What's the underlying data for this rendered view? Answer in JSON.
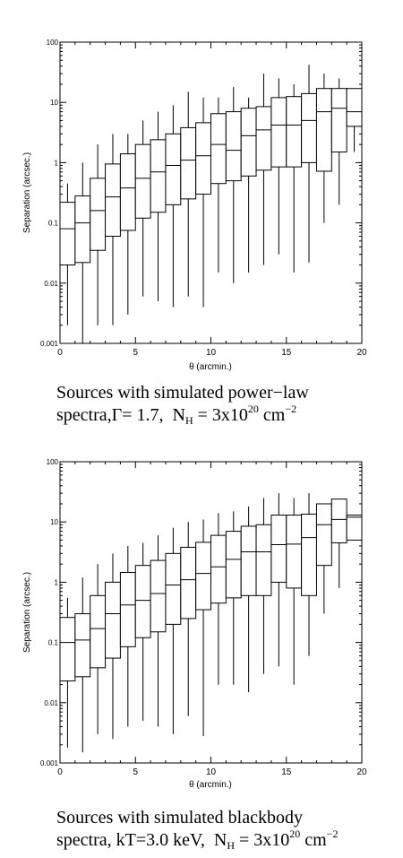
{
  "chart_data": [
    {
      "type": "boxplot",
      "xlabel": "θ (arcmin.)",
      "ylabel": "Separation (arcsec.)",
      "xlim": [
        0,
        20
      ],
      "ylim": [
        0.001,
        100
      ],
      "yscale": "log",
      "xticks": [
        "0",
        "5",
        "10",
        "15",
        "20"
      ],
      "yticks": [
        "0.001",
        "0.01",
        "0.1",
        "1",
        "10",
        "100"
      ],
      "grid": false,
      "bin_width": 1,
      "boxes": [
        {
          "x": 0.5,
          "whisker_low": 0.002,
          "q1": 0.02,
          "median": 0.08,
          "q3": 0.22,
          "whisker_high": 0.45
        },
        {
          "x": 1.5,
          "whisker_low": 0.001,
          "q1": 0.022,
          "median": 0.1,
          "q3": 0.28,
          "whisker_high": 1.0
        },
        {
          "x": 2.5,
          "whisker_low": 0.002,
          "q1": 0.035,
          "median": 0.16,
          "q3": 0.55,
          "whisker_high": 2.0
        },
        {
          "x": 3.5,
          "whisker_low": 0.002,
          "q1": 0.06,
          "median": 0.27,
          "q3": 0.95,
          "whisker_high": 3.0
        },
        {
          "x": 4.5,
          "whisker_low": 0.003,
          "q1": 0.075,
          "median": 0.38,
          "q3": 1.4,
          "whisker_high": 3.0
        },
        {
          "x": 5.5,
          "whisker_low": 0.006,
          "q1": 0.12,
          "median": 0.55,
          "q3": 2.0,
          "whisker_high": 5.0
        },
        {
          "x": 6.5,
          "whisker_low": 0.005,
          "q1": 0.15,
          "median": 0.7,
          "q3": 2.4,
          "whisker_high": 7.0
        },
        {
          "x": 7.5,
          "whisker_low": 0.004,
          "q1": 0.2,
          "median": 0.9,
          "q3": 3.0,
          "whisker_high": 9.0
        },
        {
          "x": 8.5,
          "whisker_low": 0.006,
          "q1": 0.25,
          "median": 1.1,
          "q3": 3.8,
          "whisker_high": 15.0
        },
        {
          "x": 9.5,
          "whisker_low": 0.004,
          "q1": 0.3,
          "median": 1.3,
          "q3": 4.6,
          "whisker_high": 12.0
        },
        {
          "x": 10.5,
          "whisker_low": 0.015,
          "q1": 0.45,
          "median": 2.0,
          "q3": 6.5,
          "whisker_high": 12.0
        },
        {
          "x": 11.5,
          "whisker_low": 0.01,
          "q1": 0.5,
          "median": 1.6,
          "q3": 7.0,
          "whisker_high": 18.0
        },
        {
          "x": 12.5,
          "whisker_low": 0.015,
          "q1": 0.6,
          "median": 2.8,
          "q3": 8.0,
          "whisker_high": 12.0
        },
        {
          "x": 13.5,
          "whisker_low": 0.02,
          "q1": 0.75,
          "median": 3.5,
          "q3": 8.5,
          "whisker_high": 30.0
        },
        {
          "x": 14.5,
          "whisker_low": 0.03,
          "q1": 0.85,
          "median": 4.2,
          "q3": 12.0,
          "whisker_high": 25.0
        },
        {
          "x": 15.5,
          "whisker_low": 0.015,
          "q1": 0.85,
          "median": 4.2,
          "q3": 12.5,
          "whisker_high": 20.0
        },
        {
          "x": 16.5,
          "whisker_low": 0.022,
          "q1": 1.0,
          "median": 5.0,
          "q3": 14.0,
          "whisker_high": 42.0
        },
        {
          "x": 17.5,
          "whisker_low": 0.1,
          "q1": 0.72,
          "median": 7.0,
          "q3": 17.0,
          "whisker_high": 30.0
        },
        {
          "x": 18.5,
          "whisker_low": 0.2,
          "q1": 1.5,
          "median": 8.0,
          "q3": 17.0,
          "whisker_high": 25.0
        },
        {
          "x": 19.5,
          "whisker_low": 1.5,
          "q1": 4.0,
          "median": 7.0,
          "q3": 17.0,
          "whisker_high": 17.0
        }
      ],
      "caption": {
        "line1": "Sources with simulated power−law",
        "line2_prefix": "spectra,",
        "gamma_symbol": "Γ",
        "gamma_value": "= 1.7,",
        "nh_symbol": "N",
        "nh_sub": "H",
        "nh_eq": "= 3x10",
        "nh_exp": "20",
        "nh_unit": "cm",
        "nh_unit_exp": "−2"
      }
    },
    {
      "type": "boxplot",
      "xlabel": "θ (arcmin.)",
      "ylabel": "Separation (arcsec.)",
      "xlim": [
        0,
        20
      ],
      "ylim": [
        0.001,
        100
      ],
      "yscale": "log",
      "xticks": [
        "0",
        "5",
        "10",
        "15",
        "20"
      ],
      "yticks": [
        "0.001",
        "0.01",
        "0.1",
        "1",
        "10",
        "100"
      ],
      "grid": false,
      "bin_width": 1,
      "boxes": [
        {
          "x": 0.5,
          "whisker_low": 0.0018,
          "q1": 0.023,
          "median": 0.1,
          "q3": 0.26,
          "whisker_high": 0.55
        },
        {
          "x": 1.5,
          "whisker_low": 0.0015,
          "q1": 0.027,
          "median": 0.11,
          "q3": 0.3,
          "whisker_high": 1.2
        },
        {
          "x": 2.5,
          "whisker_low": 0.003,
          "q1": 0.038,
          "median": 0.17,
          "q3": 0.6,
          "whisker_high": 2.0
        },
        {
          "x": 3.5,
          "whisker_low": 0.0025,
          "q1": 0.055,
          "median": 0.3,
          "q3": 1.0,
          "whisker_high": 3.0
        },
        {
          "x": 4.5,
          "whisker_low": 0.004,
          "q1": 0.085,
          "median": 0.42,
          "q3": 1.45,
          "whisker_high": 4.0
        },
        {
          "x": 5.5,
          "whisker_low": 0.005,
          "q1": 0.12,
          "median": 0.5,
          "q3": 1.9,
          "whisker_high": 4.5
        },
        {
          "x": 6.5,
          "whisker_low": 0.004,
          "q1": 0.15,
          "median": 0.65,
          "q3": 2.3,
          "whisker_high": 6.0
        },
        {
          "x": 7.5,
          "whisker_low": 0.003,
          "q1": 0.2,
          "median": 0.9,
          "q3": 3.0,
          "whisker_high": 8.0
        },
        {
          "x": 8.5,
          "whisker_low": 0.006,
          "q1": 0.25,
          "median": 1.1,
          "q3": 3.8,
          "whisker_high": 10.0
        },
        {
          "x": 9.5,
          "whisker_low": 0.0028,
          "q1": 0.35,
          "median": 1.4,
          "q3": 4.6,
          "whisker_high": 11.0
        },
        {
          "x": 10.5,
          "whisker_low": 0.02,
          "q1": 0.45,
          "median": 1.8,
          "q3": 6.0,
          "whisker_high": 14.0
        },
        {
          "x": 11.5,
          "whisker_low": 0.02,
          "q1": 0.55,
          "median": 2.4,
          "q3": 7.0,
          "whisker_high": 15.0
        },
        {
          "x": 12.5,
          "whisker_low": 0.015,
          "q1": 0.6,
          "median": 3.2,
          "q3": 8.5,
          "whisker_high": 18.0
        },
        {
          "x": 13.5,
          "whisker_low": 0.03,
          "q1": 0.6,
          "median": 3.2,
          "q3": 9.0,
          "whisker_high": 25.0
        },
        {
          "x": 14.5,
          "whisker_low": 0.04,
          "q1": 1.0,
          "median": 4.2,
          "q3": 13.0,
          "whisker_high": 30.0
        },
        {
          "x": 15.5,
          "whisker_low": 0.02,
          "q1": 0.8,
          "median": 4.3,
          "q3": 13.0,
          "whisker_high": 25.0
        },
        {
          "x": 16.5,
          "whisker_low": 0.06,
          "q1": 0.6,
          "median": 5.5,
          "q3": 13.5,
          "whisker_high": 30.0
        },
        {
          "x": 17.5,
          "whisker_low": 0.3,
          "q1": 1.9,
          "median": 9.0,
          "q3": 20.0,
          "whisker_high": 20.0
        },
        {
          "x": 18.5,
          "whisker_low": 0.8,
          "q1": 4.5,
          "median": 11.0,
          "q3": 24.0,
          "whisker_high": 24.0
        },
        {
          "x": 19.5,
          "whisker_low": 5.0,
          "q1": 5.0,
          "median": 12.0,
          "q3": 13.0,
          "whisker_high": 13.0
        }
      ],
      "caption": {
        "line1": "Sources with simulated blackbody",
        "line2_prefix": "spectra, kT=3.0 keV,",
        "nh_symbol": "N",
        "nh_sub": "H",
        "nh_eq": "= 3x10",
        "nh_exp": "20",
        "nh_unit": "cm",
        "nh_unit_exp": "−2"
      }
    }
  ]
}
